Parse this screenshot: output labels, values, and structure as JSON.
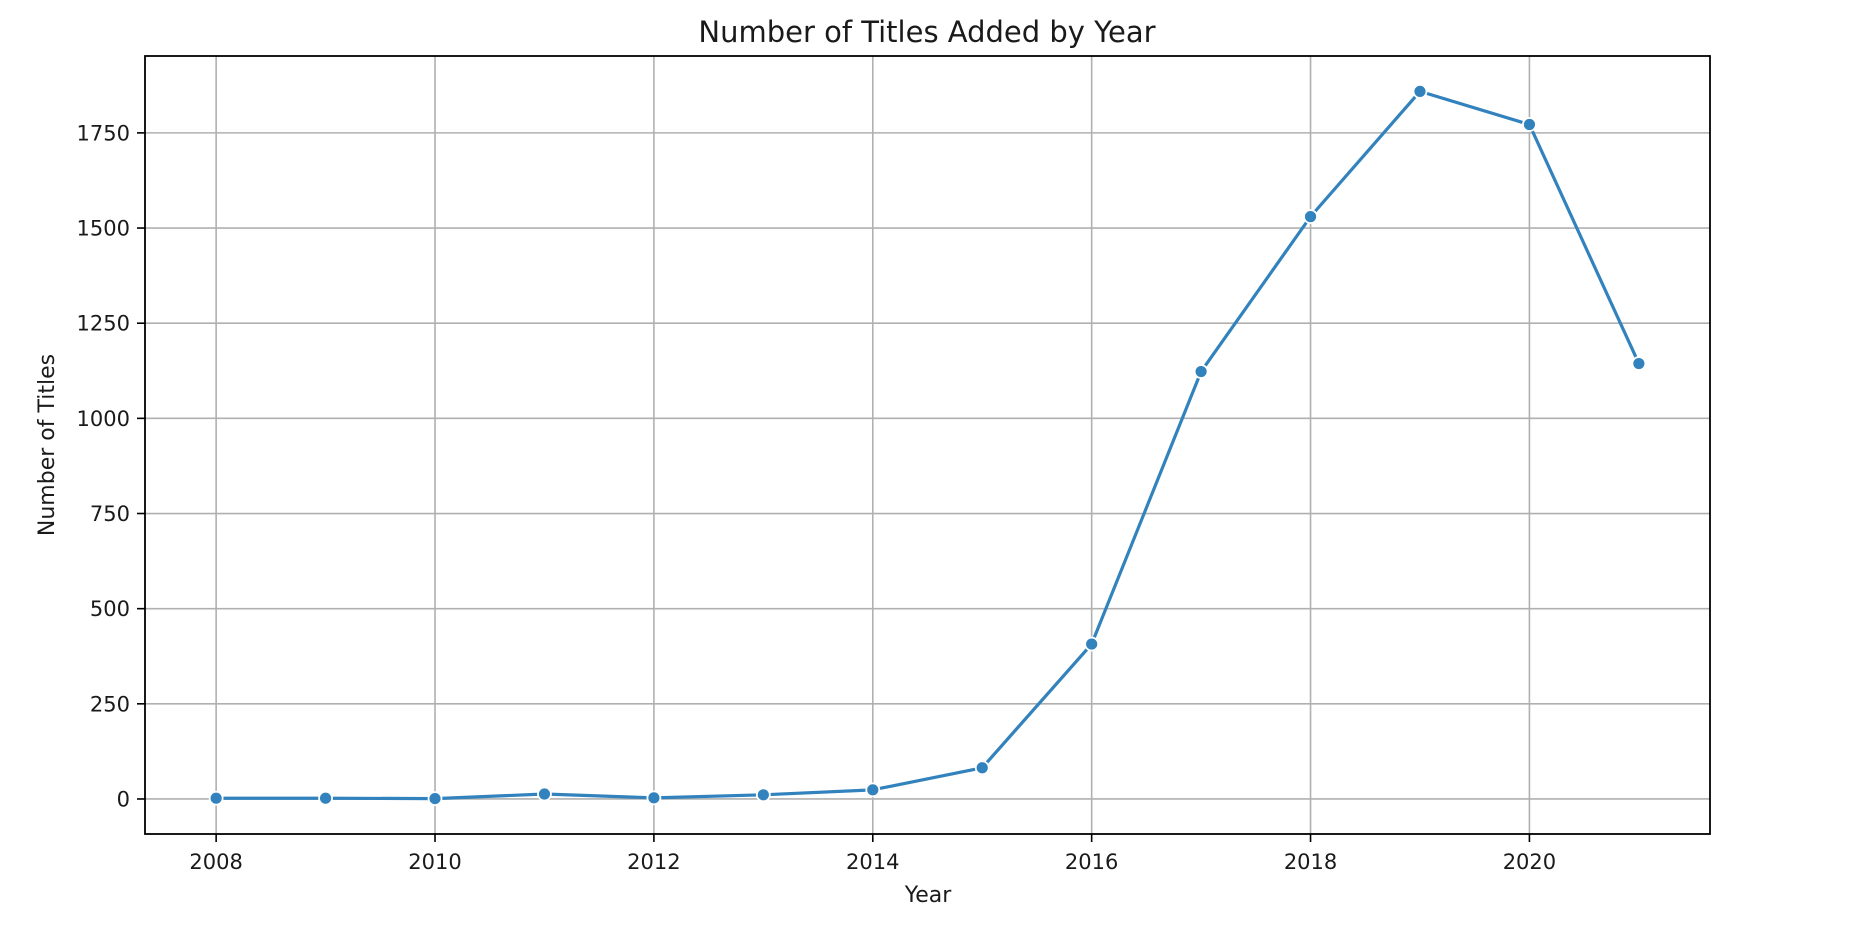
{
  "chart_data": {
    "type": "line",
    "title": "Number of Titles Added by Year",
    "xlabel": "Year",
    "ylabel": "Number of Titles",
    "x": [
      2008,
      2009,
      2010,
      2011,
      2012,
      2013,
      2014,
      2015,
      2016,
      2017,
      2018,
      2019,
      2020,
      2021
    ],
    "series": [
      {
        "values": [
          2,
          2,
          1,
          13,
          3,
          11,
          24,
          82,
          407,
          1123,
          1530,
          1859,
          1772,
          1144
        ],
        "color": "#3182bd"
      }
    ],
    "xlim": [
      2007.35,
      2021.65
    ],
    "ylim": [
      -92,
      1952
    ],
    "xticks": [
      "2008",
      "2010",
      "2012",
      "2014",
      "2016",
      "2018",
      "2020"
    ],
    "yticks": [
      "0",
      "250",
      "500",
      "750",
      "1000",
      "1250",
      "1500",
      "1750"
    ],
    "grid": true,
    "legend": "none"
  }
}
